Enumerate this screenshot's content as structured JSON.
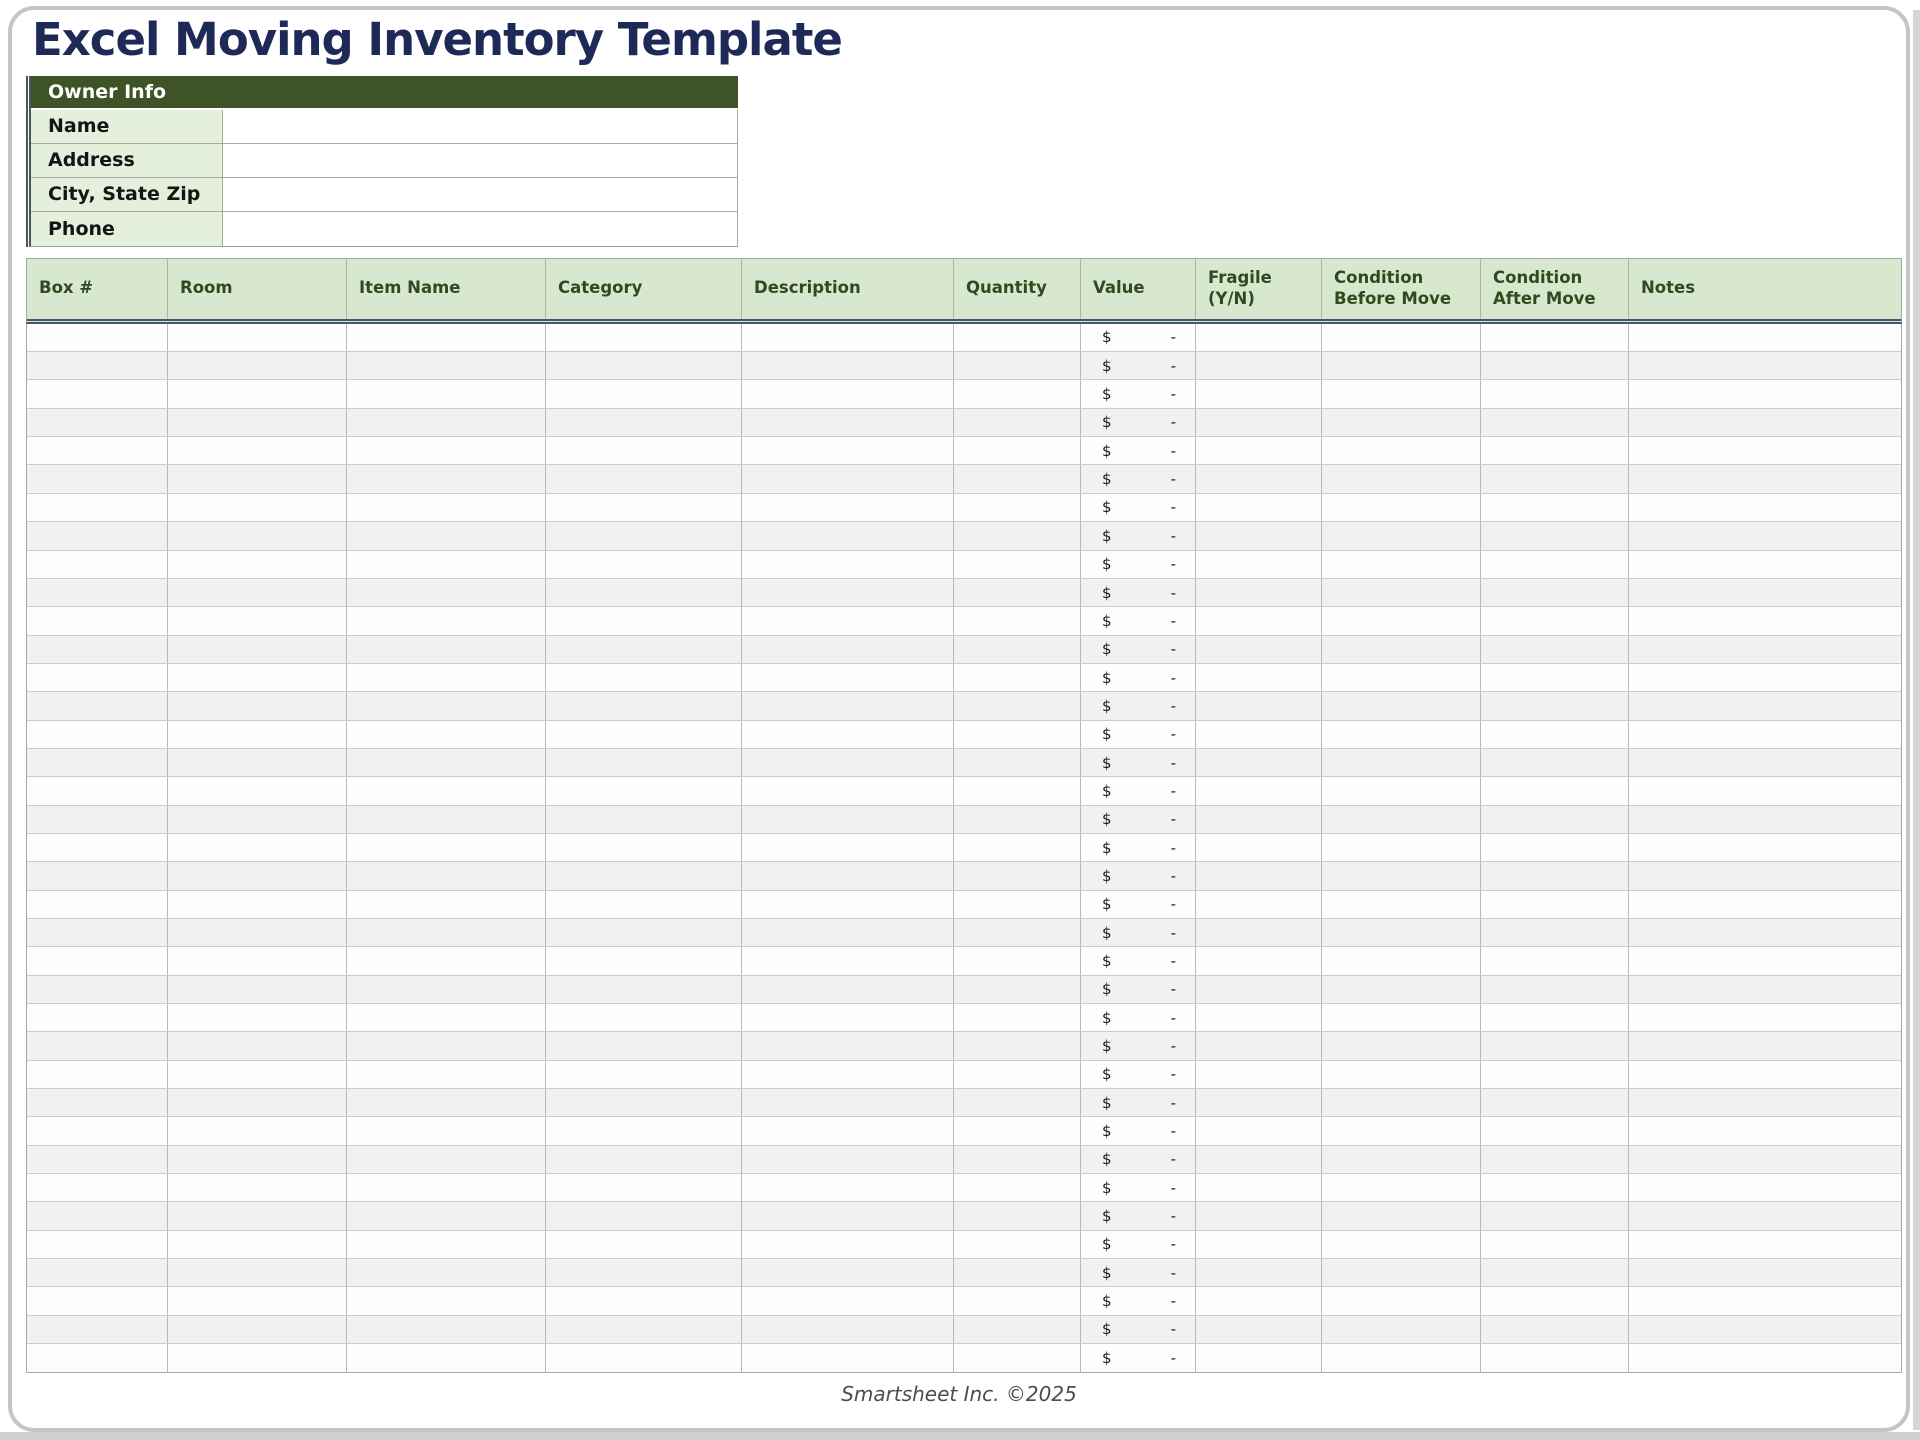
{
  "page": {
    "title": "Excel Moving Inventory Template",
    "footer": "Smartsheet Inc. ©2025"
  },
  "owner_info": {
    "header": "Owner Info",
    "fields": [
      {
        "label": "Name",
        "value": ""
      },
      {
        "label": "Address",
        "value": ""
      },
      {
        "label": "City, State Zip",
        "value": ""
      },
      {
        "label": "Phone",
        "value": ""
      }
    ]
  },
  "inventory_table": {
    "columns": [
      "Box #",
      "Room",
      "Item Name",
      "Category",
      "Description",
      "Quantity",
      "Value",
      "Fragile (Y/N)",
      "Condition Before Move",
      "Condition After Move",
      "Notes"
    ],
    "value_column_index": 6,
    "row_count": 37,
    "value_cell": {
      "currency_symbol": "$",
      "amount": "-"
    }
  },
  "colors": {
    "title_text": "#1d2a57",
    "owner_header_bg": "#3e5426",
    "owner_label_bg": "#e4efdc",
    "table_header_bg": "#d8e8cf",
    "table_header_text": "#2e4b1d",
    "header_double_border": "#44576b",
    "row_stripe": "#f1f1f1"
  }
}
